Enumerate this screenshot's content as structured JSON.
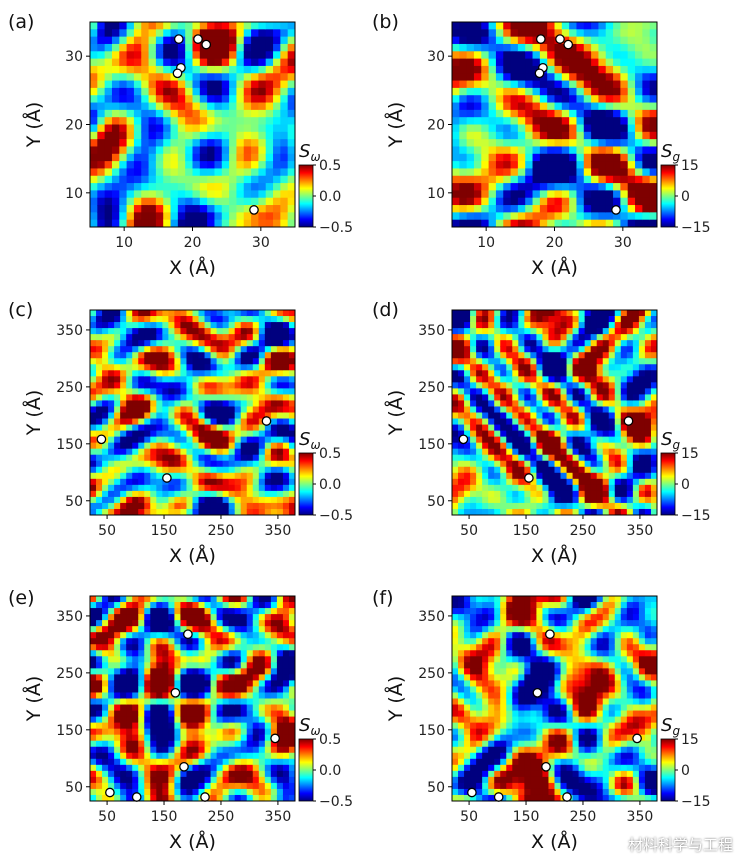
{
  "watermark": "材料科学与工程",
  "colormap": [
    "#00007f",
    "#0000ff",
    "#007fff",
    "#00ffff",
    "#7fff7f",
    "#ffff00",
    "#ff7f00",
    "#ff0000",
    "#7f0000"
  ],
  "marker_color": "#ffffff",
  "chart_data": [
    {
      "panel": "(a)",
      "type": "heatmap",
      "xlabel": "X (Å)",
      "ylabel": "Y (Å)",
      "xlim": [
        5,
        35
      ],
      "ylim": [
        5,
        35
      ],
      "xticks": [
        "10",
        "20",
        "30"
      ],
      "xtick_values": [
        10,
        20,
        30
      ],
      "yticks": [
        "10",
        "20",
        "30"
      ],
      "ytick_values": [
        10,
        20,
        30
      ],
      "colorbar": {
        "symbol": "S",
        "subscript": "ω",
        "range": [
          -0.5,
          0.5
        ],
        "ticks": [
          "0.5",
          "0.0",
          "−0.5"
        ],
        "tick_values": [
          0.5,
          0.0,
          -0.5
        ]
      },
      "markers": [
        [
          18,
          32.5
        ],
        [
          20.8,
          32.5
        ],
        [
          22,
          31.7
        ],
        [
          18.3,
          28.3
        ],
        [
          17.8,
          27.5
        ],
        [
          29,
          7.5
        ]
      ]
    },
    {
      "panel": "(b)",
      "type": "heatmap",
      "xlabel": "X (Å)",
      "ylabel": "Y (Å)",
      "xlim": [
        5,
        35
      ],
      "ylim": [
        5,
        35
      ],
      "xticks": [
        "10",
        "20",
        "30"
      ],
      "xtick_values": [
        10,
        20,
        30
      ],
      "yticks": [
        "10",
        "20",
        "30"
      ],
      "ytick_values": [
        10,
        20,
        30
      ],
      "colorbar": {
        "symbol": "S",
        "subscript": "g",
        "range": [
          -15,
          15
        ],
        "ticks": [
          "15",
          "0",
          "−15"
        ],
        "tick_values": [
          15,
          0,
          -15
        ]
      },
      "markers": [
        [
          18,
          32.5
        ],
        [
          20.8,
          32.5
        ],
        [
          22,
          31.7
        ],
        [
          18.3,
          28.3
        ],
        [
          17.8,
          27.5
        ],
        [
          29,
          7.5
        ]
      ]
    },
    {
      "panel": "(c)",
      "type": "heatmap",
      "xlabel": "X (Å)",
      "ylabel": "Y (Å)",
      "xlim": [
        20,
        380
      ],
      "ylim": [
        25,
        385
      ],
      "xticks": [
        "50",
        "150",
        "250",
        "350"
      ],
      "xtick_values": [
        50,
        150,
        250,
        350
      ],
      "yticks": [
        "50",
        "150",
        "250",
        "350"
      ],
      "ytick_values": [
        50,
        150,
        250,
        350
      ],
      "colorbar": {
        "symbol": "S",
        "subscript": "ω",
        "range": [
          -0.5,
          0.5
        ],
        "ticks": [
          "0.5",
          "0.0",
          "−0.5"
        ],
        "tick_values": [
          0.5,
          0.0,
          -0.5
        ]
      },
      "markers": [
        [
          40,
          158
        ],
        [
          155,
          90
        ],
        [
          330,
          190
        ]
      ]
    },
    {
      "panel": "(d)",
      "type": "heatmap",
      "xlabel": "X (Å)",
      "ylabel": "Y (Å)",
      "xlim": [
        20,
        380
      ],
      "ylim": [
        25,
        385
      ],
      "xticks": [
        "50",
        "150",
        "250",
        "350"
      ],
      "xtick_values": [
        50,
        150,
        250,
        350
      ],
      "yticks": [
        "50",
        "150",
        "250",
        "350"
      ],
      "ytick_values": [
        50,
        150,
        250,
        350
      ],
      "colorbar": {
        "symbol": "S",
        "subscript": "g",
        "range": [
          -15,
          15
        ],
        "ticks": [
          "15",
          "0",
          "−15"
        ],
        "tick_values": [
          15,
          0,
          -15
        ]
      },
      "markers": [
        [
          40,
          158
        ],
        [
          155,
          90
        ],
        [
          330,
          190
        ]
      ]
    },
    {
      "panel": "(e)",
      "type": "heatmap",
      "xlabel": "X (Å)",
      "ylabel": "Y (Å)",
      "xlim": [
        20,
        380
      ],
      "ylim": [
        25,
        385
      ],
      "xticks": [
        "50",
        "150",
        "250",
        "350"
      ],
      "xtick_values": [
        50,
        150,
        250,
        350
      ],
      "yticks": [
        "50",
        "150",
        "250",
        "350"
      ],
      "ytick_values": [
        50,
        150,
        250,
        350
      ],
      "colorbar": {
        "symbol": "S",
        "subscript": "ω",
        "range": [
          -0.5,
          0.5
        ],
        "ticks": [
          "0.5",
          "0.0",
          "−0.5"
        ],
        "tick_values": [
          0.5,
          0.0,
          -0.5
        ]
      },
      "markers": [
        [
          192,
          318
        ],
        [
          170,
          215
        ],
        [
          185,
          85
        ],
        [
          345,
          135
        ],
        [
          55,
          40
        ],
        [
          102,
          32
        ],
        [
          222,
          32
        ]
      ]
    },
    {
      "panel": "(f)",
      "type": "heatmap",
      "xlabel": "X (Å)",
      "ylabel": "Y (Å)",
      "xlim": [
        20,
        380
      ],
      "ylim": [
        25,
        385
      ],
      "xticks": [
        "50",
        "150",
        "250",
        "350"
      ],
      "xtick_values": [
        50,
        150,
        250,
        350
      ],
      "yticks": [
        "50",
        "150",
        "250",
        "350"
      ],
      "ytick_values": [
        50,
        150,
        250,
        350
      ],
      "colorbar": {
        "symbol": "S",
        "subscript": "g",
        "range": [
          -15,
          15
        ],
        "ticks": [
          "15",
          "0",
          "−15"
        ],
        "tick_values": [
          15,
          0,
          -15
        ]
      },
      "markers": [
        [
          192,
          318
        ],
        [
          170,
          215
        ],
        [
          185,
          85
        ],
        [
          345,
          135
        ],
        [
          55,
          40
        ],
        [
          102,
          32
        ],
        [
          222,
          32
        ]
      ]
    }
  ]
}
